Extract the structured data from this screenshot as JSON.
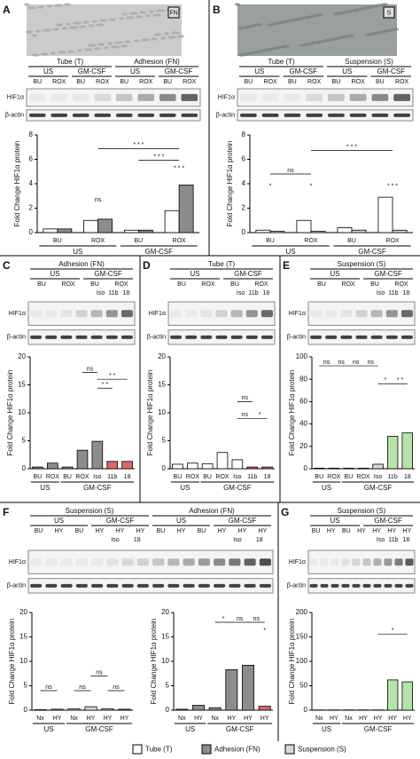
{
  "panels": [
    {
      "letter": "A",
      "image_label": "FN",
      "conditions": [
        "US",
        "GM-CSF",
        "US",
        "GM-CSF"
      ],
      "treatments": [
        "BU",
        "ROX",
        "BU",
        "ROX",
        "BU",
        "ROX",
        "BU",
        "ROX"
      ],
      "treatments2": [],
      "blot_labels": [
        "HIF1α",
        "β-actin"
      ]
    },
    {
      "letter": "B",
      "image_label": "S",
      "conditions": [
        "US",
        "GM-CSF",
        "US",
        "GM-CSF"
      ],
      "treatments": [
        "BU",
        "ROX",
        "BU",
        "ROX",
        "BU",
        "ROX",
        "BU",
        "ROX"
      ],
      "treatments2": [],
      "blot_labels": [
        "HIF1α",
        "β-actin"
      ]
    },
    {
      "letter": "C",
      "conditions": [
        "US",
        "GM-CSF"
      ],
      "treatments": [
        "BU",
        "ROX",
        "BU",
        "ROX"
      ],
      "treatments2": [
        "Iso",
        "11b",
        "18"
      ],
      "blot_labels": [
        "HIF1α",
        "β-actin"
      ]
    },
    {
      "letter": "D",
      "conditions": [
        "US",
        "GM-CSF"
      ],
      "treatments": [
        "BU",
        "ROX",
        "BU",
        "ROX"
      ],
      "treatments2": [
        "Iso",
        "11b",
        "18"
      ],
      "blot_labels": [
        "HIF1α",
        "β-actin"
      ]
    },
    {
      "letter": "E",
      "conditions": [
        "US",
        "GM-CSF"
      ],
      "treatments": [
        "BU",
        "ROX",
        "BU",
        "ROX"
      ],
      "treatments2": [
        "Iso",
        "11b",
        "18"
      ],
      "blot_labels": [
        "HIF1α",
        "β-actin"
      ]
    },
    {
      "letter": "F",
      "conditions": [
        "US",
        "GM-CSF",
        "US",
        "GM-CSF"
      ],
      "treatments": [
        "BU",
        "HY",
        "BU",
        "HY",
        "HY",
        "HY",
        "BU",
        "HY",
        "BU",
        "HY",
        "HY",
        "HY"
      ],
      "treatments2": [
        "Iso",
        "18",
        "Iso",
        "18"
      ],
      "blot_labels": [
        "HIF1α",
        "β-actin"
      ]
    },
    {
      "letter": "G",
      "conditions": [
        "US",
        "GM-CSF"
      ],
      "treatments": [
        "BU",
        "HY",
        "BU",
        "HY",
        "HY",
        "HY",
        "HY"
      ],
      "treatments2": [
        "Iso",
        "11b",
        "18"
      ],
      "blot_labels": [
        "HIF1α",
        "β-actin"
      ]
    }
  ],
  "legend": [
    {
      "name": "Tube (T)",
      "color": "#ffffff"
    },
    {
      "name": "Adhesion (FN)",
      "color": "#8c8c8c"
    },
    {
      "name": "Suspension (S)",
      "color": "#d9d9d9"
    }
  ],
  "chart_data": [
    {
      "type": "bar",
      "ylabel": "Fold Change HIF1α protein",
      "categories": [
        "BU",
        "ROX",
        "BU",
        "ROX"
      ],
      "groups": [
        "US",
        "GM-CSF"
      ],
      "series": [
        {
          "name": "Tube (T)",
          "color": "#ffffff",
          "values": [
            0.3,
            1.0,
            0.2,
            1.8
          ]
        },
        {
          "name": "Adhesion (FN)",
          "color": "#8c8c8c",
          "values": [
            0.3,
            1.1,
            0.2,
            3.9
          ]
        }
      ],
      "ylim": [
        0,
        8
      ],
      "yticks": [
        0,
        2,
        4,
        6,
        8
      ],
      "annotations": [
        "ns",
        "* * *",
        "* * *",
        "* * *"
      ]
    },
    {
      "type": "bar",
      "ylabel": "Fold Change HIF1α protein",
      "categories": [
        "BU",
        "ROX",
        "BU",
        "ROX"
      ],
      "groups": [
        "US",
        "GM-CSF"
      ],
      "series": [
        {
          "name": "Tube (T)",
          "color": "#ffffff",
          "values": [
            0.2,
            1.0,
            0.4,
            2.9
          ]
        },
        {
          "name": "Suspension (S)",
          "color": "#d9d9d9",
          "values": [
            0.1,
            0.1,
            0.2,
            0.2
          ]
        }
      ],
      "ylim": [
        0,
        8
      ],
      "yticks": [
        0,
        2,
        4,
        6,
        8
      ],
      "annotations": [
        "ns",
        "*",
        "*",
        "* * *",
        "* * *"
      ]
    },
    {
      "type": "bar",
      "subtitle": "Adhesion (FN)",
      "ylabel": "Fold Change HIF1α protein",
      "categories": [
        "BU",
        "ROX",
        "BU",
        "ROX",
        "Iso",
        "11b",
        "18"
      ],
      "groups": [
        "US",
        "GM-CSF"
      ],
      "values": [
        0.3,
        1.0,
        0.3,
        3.3,
        4.9,
        1.3,
        1.3
      ],
      "colors": [
        "#8c8c8c",
        "#8c8c8c",
        "#8c8c8c",
        "#8c8c8c",
        "#8c8c8c",
        "#e06666",
        "#e06666"
      ],
      "ylim": [
        0,
        20
      ],
      "yticks": [
        0,
        5,
        10,
        15,
        20
      ],
      "annotations": [
        "ns",
        "* *",
        "* *"
      ]
    },
    {
      "type": "bar",
      "subtitle": "Tube (T)",
      "ylabel": "Fold Change HIF1α protein",
      "categories": [
        "BU",
        "ROX",
        "BU",
        "ROX",
        "Iso",
        "11b",
        "18"
      ],
      "groups": [
        "US",
        "GM-CSF"
      ],
      "values": [
        0.8,
        1.0,
        0.9,
        2.9,
        1.6,
        0.3,
        0.3
      ],
      "colors": [
        "#ffffff",
        "#ffffff",
        "#ffffff",
        "#ffffff",
        "#ffffff",
        "#e06666",
        "#e06666"
      ],
      "ylim": [
        0,
        20
      ],
      "yticks": [
        0,
        5,
        10,
        15,
        20
      ],
      "annotations": [
        "ns",
        "ns",
        "*"
      ]
    },
    {
      "type": "bar",
      "subtitle": "Suspension (S)",
      "ylabel": "Fold Change HIF1α protein",
      "categories": [
        "BU",
        "ROX",
        "BU",
        "ROX",
        "Iso",
        "11b",
        "18"
      ],
      "groups": [
        "US",
        "GM-CSF"
      ],
      "values": [
        0.5,
        0.5,
        0.5,
        0.5,
        4,
        29,
        32
      ],
      "colors": [
        "#d9d9d9",
        "#d9d9d9",
        "#d9d9d9",
        "#d9d9d9",
        "#d9d9d9",
        "#b6e3a8",
        "#b6e3a8"
      ],
      "ylim": [
        0,
        100
      ],
      "yticks": [
        0,
        20,
        40,
        60,
        80,
        100
      ],
      "annotations": [
        "ns",
        "ns",
        "ns",
        "ns",
        "*",
        "* *"
      ]
    },
    {
      "type": "bar",
      "subtitle": "Suspension (S)",
      "ylabel": "Fold Change HIF1α protein",
      "categories": [
        "Nx",
        "HY",
        "Nx",
        "HY",
        "HY",
        "HY"
      ],
      "groups": [
        "US",
        "GM-CSF"
      ],
      "values": [
        0.1,
        0.2,
        0.3,
        0.7,
        0.3,
        0.2
      ],
      "colors": [
        "#d9d9d9",
        "#d9d9d9",
        "#d9d9d9",
        "#d9d9d9",
        "#d9d9d9",
        "#e06666"
      ],
      "ylim": [
        0,
        20
      ],
      "yticks": [
        0,
        5,
        10,
        15,
        20
      ],
      "annotations": [
        "ns",
        "ns",
        "ns",
        "ns"
      ]
    },
    {
      "type": "bar",
      "subtitle": "Adhesion (FN)",
      "ylabel": "Fold Change HIF1α protein",
      "categories": [
        "Nx",
        "HY",
        "Nx",
        "HY",
        "HY",
        "HY"
      ],
      "groups": [
        "US",
        "GM-CSF"
      ],
      "values": [
        0.2,
        1.0,
        0.5,
        8.3,
        9.2,
        0.8
      ],
      "colors": [
        "#8c8c8c",
        "#8c8c8c",
        "#8c8c8c",
        "#8c8c8c",
        "#8c8c8c",
        "#e06666"
      ],
      "ylim": [
        0,
        20
      ],
      "yticks": [
        0,
        5,
        10,
        15,
        20
      ],
      "annotations": [
        "*",
        "ns",
        "ns",
        "*"
      ]
    },
    {
      "type": "bar",
      "subtitle": "Suspension (S)",
      "ylabel": "Fold Change HIF1α protein",
      "categories": [
        "Nx",
        "HY",
        "Nx",
        "HY",
        "HY",
        "HY",
        "HY"
      ],
      "groups": [
        "US",
        "GM-CSF"
      ],
      "values": [
        0.5,
        0.5,
        0.5,
        0.5,
        0.5,
        62,
        58
      ],
      "colors": [
        "#d9d9d9",
        "#d9d9d9",
        "#d9d9d9",
        "#d9d9d9",
        "#d9d9d9",
        "#b6e3a8",
        "#b6e3a8"
      ],
      "ylim": [
        0,
        200
      ],
      "yticks": [
        0,
        50,
        100,
        150,
        200
      ],
      "annotations": [
        "*"
      ]
    }
  ]
}
